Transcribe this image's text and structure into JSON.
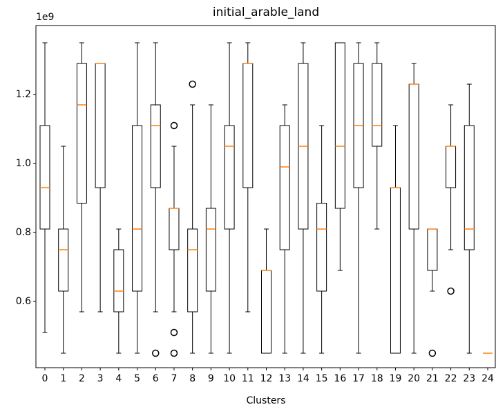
{
  "chart_data": {
    "type": "box",
    "title": "initial_arable_land",
    "xlabel": "Clusters",
    "offset_label": "1e9",
    "categories": [
      "0",
      "1",
      "2",
      "3",
      "4",
      "5",
      "6",
      "7",
      "8",
      "9",
      "10",
      "11",
      "12",
      "13",
      "14",
      "15",
      "16",
      "17",
      "18",
      "19",
      "20",
      "21",
      "22",
      "23",
      "24"
    ],
    "boxes": [
      {
        "whislo": 0.51,
        "q1": 0.81,
        "med": 0.93,
        "q3": 1.11,
        "whishi": 1.35,
        "fliers": []
      },
      {
        "whislo": 0.45,
        "q1": 0.63,
        "med": 0.75,
        "q3": 0.81,
        "whishi": 1.05,
        "fliers": []
      },
      {
        "whislo": 0.57,
        "q1": 0.885,
        "med": 1.17,
        "q3": 1.29,
        "whishi": 1.35,
        "fliers": []
      },
      {
        "whislo": 0.57,
        "q1": 0.93,
        "med": 1.29,
        "q3": 1.29,
        "whishi": 1.29,
        "fliers": []
      },
      {
        "whislo": 0.45,
        "q1": 0.57,
        "med": 0.63,
        "q3": 0.75,
        "whishi": 0.81,
        "fliers": []
      },
      {
        "whislo": 0.45,
        "q1": 0.63,
        "med": 0.81,
        "q3": 1.11,
        "whishi": 1.35,
        "fliers": []
      },
      {
        "whislo": 0.57,
        "q1": 0.93,
        "med": 1.11,
        "q3": 1.17,
        "whishi": 1.35,
        "fliers": [
          0.45
        ]
      },
      {
        "whislo": 0.57,
        "q1": 0.75,
        "med": 0.87,
        "q3": 0.87,
        "whishi": 1.05,
        "fliers": [
          0.45,
          0.51,
          1.11
        ]
      },
      {
        "whislo": 0.45,
        "q1": 0.57,
        "med": 0.75,
        "q3": 0.81,
        "whishi": 1.17,
        "fliers": [
          1.23
        ]
      },
      {
        "whislo": 0.45,
        "q1": 0.63,
        "med": 0.81,
        "q3": 0.87,
        "whishi": 1.17,
        "fliers": []
      },
      {
        "whislo": 0.45,
        "q1": 0.81,
        "med": 1.05,
        "q3": 1.11,
        "whishi": 1.35,
        "fliers": []
      },
      {
        "whislo": 0.57,
        "q1": 0.93,
        "med": 1.29,
        "q3": 1.29,
        "whishi": 1.35,
        "fliers": []
      },
      {
        "whislo": 0.45,
        "q1": 0.45,
        "med": 0.69,
        "q3": 0.69,
        "whishi": 0.81,
        "fliers": []
      },
      {
        "whislo": 0.45,
        "q1": 0.75,
        "med": 0.99,
        "q3": 1.11,
        "whishi": 1.17,
        "fliers": []
      },
      {
        "whislo": 0.45,
        "q1": 0.81,
        "med": 1.05,
        "q3": 1.29,
        "whishi": 1.35,
        "fliers": []
      },
      {
        "whislo": 0.45,
        "q1": 0.63,
        "med": 0.81,
        "q3": 0.885,
        "whishi": 1.11,
        "fliers": []
      },
      {
        "whislo": 0.69,
        "q1": 0.87,
        "med": 1.05,
        "q3": 1.35,
        "whishi": 1.35,
        "fliers": []
      },
      {
        "whislo": 0.45,
        "q1": 0.93,
        "med": 1.11,
        "q3": 1.29,
        "whishi": 1.35,
        "fliers": []
      },
      {
        "whislo": 0.81,
        "q1": 1.05,
        "med": 1.11,
        "q3": 1.29,
        "whishi": 1.35,
        "fliers": []
      },
      {
        "whislo": 0.45,
        "q1": 0.45,
        "med": 0.93,
        "q3": 0.93,
        "whishi": 1.11,
        "fliers": []
      },
      {
        "whislo": 0.45,
        "q1": 0.81,
        "med": 1.23,
        "q3": 1.23,
        "whishi": 1.29,
        "fliers": []
      },
      {
        "whislo": 0.63,
        "q1": 0.69,
        "med": 0.81,
        "q3": 0.81,
        "whishi": 0.81,
        "fliers": [
          0.45
        ]
      },
      {
        "whislo": 0.75,
        "q1": 0.93,
        "med": 1.05,
        "q3": 1.05,
        "whishi": 1.17,
        "fliers": [
          0.63
        ]
      },
      {
        "whislo": 0.45,
        "q1": 0.75,
        "med": 0.81,
        "q3": 1.11,
        "whishi": 1.23,
        "fliers": []
      },
      {
        "whislo": 0.45,
        "q1": 0.45,
        "med": 0.45,
        "q3": 0.45,
        "whishi": 0.45,
        "fliers": []
      }
    ],
    "box_color": "#000000",
    "median_color": "#ff7f0e",
    "ylim": [
      0.408,
      1.4
    ],
    "yticks": [
      0.6,
      0.8,
      {
        "value": 1,
        "label": "1.0"
      },
      1.2
    ],
    "grid": false
  }
}
